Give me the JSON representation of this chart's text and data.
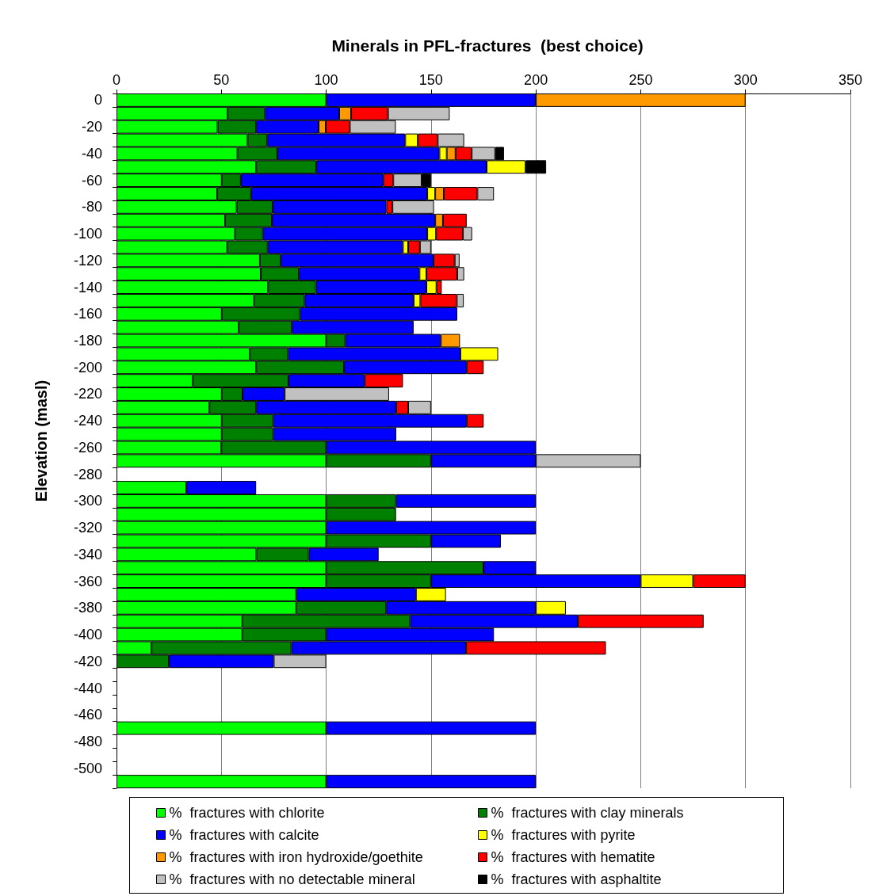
{
  "chart_data": {
    "type": "bar",
    "orientation": "horizontal",
    "stacked": true,
    "title": "Minerals in PFL-fractures  (best choice)",
    "ylabel": "Elevation (masl)",
    "categories": [
      "0",
      null,
      "-20",
      null,
      "-40",
      null,
      "-60",
      null,
      "-80",
      null,
      "-100",
      null,
      "-120",
      null,
      "-140",
      null,
      "-160",
      null,
      "-180",
      null,
      "-200",
      null,
      "-220",
      null,
      "-240",
      null,
      "-260",
      null,
      "-280",
      null,
      "-300",
      null,
      "-320",
      null,
      "-340",
      null,
      "-360",
      null,
      "-380",
      null,
      "-400",
      null,
      "-420",
      null,
      "-440",
      null,
      "-460",
      null,
      "-480",
      null,
      "-500",
      null
    ],
    "series": [
      {
        "name": "%  fractures with chlorite",
        "color": "#00ff00",
        "values": [
          100,
          53,
          48.2,
          62.5,
          57.7,
          66.6,
          50.2,
          48,
          57.3,
          51.8,
          56.5,
          52.8,
          68.4,
          68.8,
          72.3,
          65.6,
          50.2,
          58.3,
          100,
          63.6,
          66.6,
          36.4,
          50.2,
          44.3,
          50.2,
          50.2,
          50,
          100,
          null,
          33.3,
          100,
          100,
          100,
          100,
          66.7,
          100,
          100,
          85.7,
          85.7,
          60,
          60,
          16.7,
          null,
          null,
          null,
          null,
          null,
          100,
          null,
          null,
          null,
          100
        ]
      },
      {
        "name": "%  fractures with clay minerals",
        "color": "#008000",
        "values": [
          null,
          17.8,
          18.4,
          9.4,
          19,
          28.7,
          9.1,
          16.2,
          17.2,
          22.3,
          13.3,
          19.3,
          9.9,
          18.2,
          22.8,
          24.1,
          37.3,
          25.3,
          9.1,
          18.2,
          41.9,
          45.6,
          9.9,
          22.3,
          24.5,
          24.5,
          50,
          50,
          null,
          null,
          33.3,
          33.3,
          null,
          50,
          25,
          75,
          50,
          null,
          42.9,
          80,
          40,
          66.7,
          25,
          null,
          null,
          null,
          null,
          null,
          null,
          null,
          null,
          null
        ]
      },
      {
        "name": "%  fractures with calcite",
        "color": "#0000ff",
        "values": [
          100,
          35.4,
          29.8,
          65.8,
          77.3,
          81.2,
          68,
          84,
          54.2,
          77.9,
          78.4,
          64.5,
          72.9,
          57.5,
          52.7,
          52,
          75,
          58.1,
          45.6,
          82.2,
          58.5,
          36.4,
          20.1,
          66.8,
          92.3,
          58.7,
          100,
          50,
          null,
          33.3,
          66.7,
          null,
          100,
          33.3,
          33.3,
          25,
          100,
          57.1,
          71.4,
          80,
          80,
          83.3,
          50,
          null,
          null,
          null,
          null,
          100,
          null,
          null,
          null,
          100
        ]
      },
      {
        "name": "%  fractures with pyrite",
        "color": "#ffff00",
        "values": [
          null,
          null,
          null,
          6,
          3.5,
          18.6,
          null,
          3.8,
          null,
          null,
          4.2,
          2.5,
          null,
          3.3,
          4.8,
          3.2,
          null,
          null,
          null,
          18,
          null,
          null,
          null,
          null,
          null,
          null,
          null,
          null,
          null,
          null,
          null,
          null,
          null,
          null,
          null,
          null,
          25,
          14.3,
          14.3,
          null,
          null,
          null,
          null,
          null,
          null,
          null,
          null,
          null,
          null,
          null,
          null,
          null
        ]
      },
      {
        "name": "%  fractures with iron hydroxide/goethite",
        "color": "#ff9900",
        "values": [
          100,
          5.7,
          3.4,
          null,
          4.2,
          null,
          null,
          4.1,
          null,
          3.7,
          null,
          null,
          null,
          null,
          null,
          null,
          null,
          null,
          9.1,
          null,
          null,
          null,
          null,
          null,
          null,
          null,
          null,
          null,
          null,
          null,
          null,
          null,
          null,
          null,
          null,
          null,
          null,
          null,
          null,
          null,
          null,
          null,
          null,
          null,
          null,
          null,
          null,
          null,
          null,
          null,
          null,
          null
        ]
      },
      {
        "name": "%  fractures with hematite",
        "color": "#ff0000",
        "values": [
          null,
          17.6,
          11.5,
          9.5,
          7.7,
          null,
          4.7,
          16,
          2.9,
          11.3,
          12.8,
          5.6,
          10.1,
          14.7,
          2.5,
          17.4,
          null,
          null,
          null,
          null,
          8.1,
          18.2,
          null,
          5.7,
          8.1,
          null,
          null,
          null,
          null,
          null,
          null,
          null,
          null,
          null,
          null,
          null,
          25,
          null,
          null,
          60,
          null,
          66.7,
          null,
          null,
          null,
          null,
          null,
          null,
          null,
          null,
          null,
          null
        ]
      },
      {
        "name": "%  fractures with no detectable mineral",
        "color": "#c0c0c0",
        "values": [
          null,
          29.4,
          21.9,
          12.6,
          11.2,
          null,
          13.5,
          7.9,
          19.8,
          null,
          4.4,
          5.3,
          2.3,
          3.3,
          null,
          3.3,
          null,
          null,
          null,
          null,
          null,
          null,
          49.8,
          10.9,
          null,
          null,
          null,
          50,
          null,
          null,
          null,
          null,
          null,
          null,
          null,
          null,
          null,
          null,
          null,
          null,
          null,
          null,
          25,
          null,
          null,
          null,
          null,
          null,
          null,
          null,
          null,
          null
        ]
      },
      {
        "name": "%  fractures with asphaltite",
        "color": "#000000",
        "values": [
          null,
          null,
          null,
          null,
          4.2,
          9.8,
          4.5,
          null,
          null,
          null,
          null,
          null,
          null,
          null,
          null,
          null,
          null,
          null,
          null,
          null,
          null,
          null,
          null,
          null,
          null,
          null,
          null,
          null,
          null,
          null,
          null,
          null,
          null,
          null,
          null,
          null,
          null,
          null,
          null,
          null,
          null,
          null,
          null,
          null,
          null,
          null,
          null,
          null,
          null,
          null,
          null,
          null
        ]
      }
    ],
    "xlim": [
      0,
      350
    ],
    "xticks": [
      0,
      50,
      100,
      150,
      200,
      250,
      300,
      350
    ],
    "grid": "x",
    "legend": "bottom"
  }
}
